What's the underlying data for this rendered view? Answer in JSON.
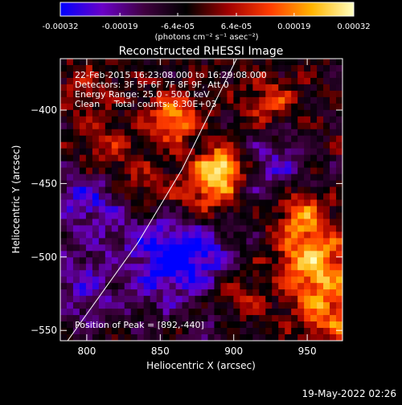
{
  "chart_data": {
    "type": "heatmap",
    "title": "Reconstructed RHESSI Image",
    "xlabel": "Heliocentric X (arcsec)",
    "ylabel": "Heliocentric Y (arcsec)",
    "xlim": [
      782,
      974
    ],
    "ylim": [
      -557,
      -365
    ],
    "xticks": [
      800,
      850,
      900,
      950
    ],
    "yticks": [
      -400,
      -450,
      -500,
      -550
    ],
    "colorbar": {
      "ticks": [
        "-0.00032",
        "-0.00019",
        "-6.4e-05",
        "6.4e-05",
        "0.00019",
        "0.00032"
      ],
      "tick_values": [
        -0.00032,
        -0.00019,
        -6.4e-05,
        6.4e-05,
        0.00019,
        0.00032
      ],
      "range": [
        -0.00032,
        0.00032
      ],
      "unit_label": "(photons cm⁻² s⁻¹ asec⁻²)",
      "colormap": [
        "#0000ff",
        "#6a00c8",
        "#400040",
        "#000000",
        "#a00000",
        "#ff3c00",
        "#ffb400",
        "#ffffc0"
      ]
    },
    "annotations": [
      "22-Feb-2015 16:23:08.000 to 16:29:08.000",
      "Detectors: 3F 5F 6F 7F 8F 9F, Att 0",
      "Energy Range: 25.0 - 50.0 keV",
      "Clean     Total counts: 8.30E+03"
    ],
    "peak_label": "Position of Peak = [892,-440]",
    "peak": [
      892,
      -440
    ],
    "grid": false,
    "limb": [
      [
        787,
        -557
      ],
      [
        835,
        -490
      ],
      [
        865,
        -440
      ],
      [
        892,
        -385
      ],
      [
        902,
        -365
      ]
    ],
    "sources": [
      {
        "x": 892,
        "y": -440,
        "amp": 0.00032,
        "sigma": 10
      },
      {
        "x": 860,
        "y": -405,
        "amp": 0.00024,
        "sigma": 12
      },
      {
        "x": 880,
        "y": -455,
        "amp": 0.0002,
        "sigma": 14
      },
      {
        "x": 955,
        "y": -505,
        "amp": 0.0003,
        "sigma": 16
      },
      {
        "x": 945,
        "y": -470,
        "amp": 0.00022,
        "sigma": 13
      },
      {
        "x": 965,
        "y": -540,
        "amp": 0.0002,
        "sigma": 14
      },
      {
        "x": 925,
        "y": -395,
        "amp": 0.00016,
        "sigma": 12
      },
      {
        "x": 810,
        "y": -430,
        "amp": 0.00014,
        "sigma": 14
      },
      {
        "x": 840,
        "y": -455,
        "amp": 0.00014,
        "sigma": 12
      },
      {
        "x": 820,
        "y": -510,
        "amp": 0.0001,
        "sigma": 12
      },
      {
        "x": 900,
        "y": -530,
        "amp": 0.00013,
        "sigma": 14
      },
      {
        "x": 800,
        "y": -385,
        "amp": 0.0001,
        "sigma": 12
      }
    ],
    "negatives": [
      {
        "x": 850,
        "y": -500,
        "amp": -0.00024,
        "sigma": 24
      },
      {
        "x": 800,
        "y": -460,
        "amp": -0.0002,
        "sigma": 18
      },
      {
        "x": 800,
        "y": -520,
        "amp": -0.00018,
        "sigma": 18
      },
      {
        "x": 930,
        "y": -440,
        "amp": -0.00016,
        "sigma": 18
      },
      {
        "x": 880,
        "y": -500,
        "amp": -0.00016,
        "sigma": 16
      },
      {
        "x": 890,
        "y": -550,
        "amp": -0.0001,
        "sigma": 14
      }
    ]
  },
  "footer": {
    "timestamp": "19-May-2022 02:26"
  }
}
